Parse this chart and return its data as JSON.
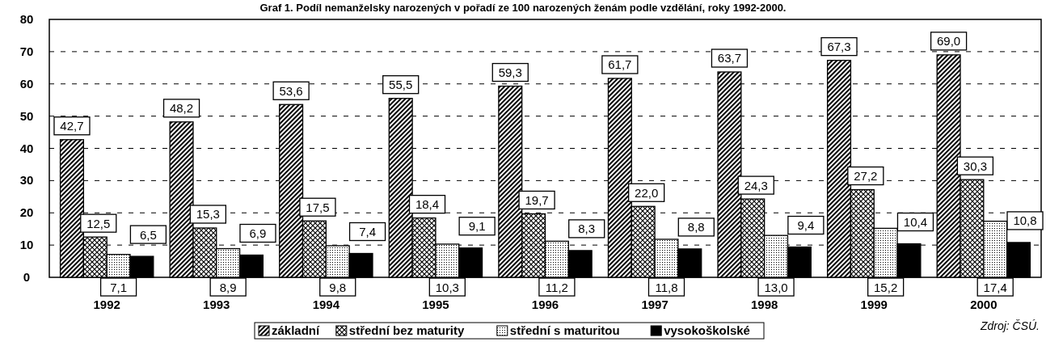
{
  "chart_data": {
    "type": "bar",
    "title": "Graf 1. Podíl nemanželsky narozených v pořadí ze 100 narozených ženám podle vzdělání, roky 1992-2000.",
    "categories": [
      "1992",
      "1993",
      "1994",
      "1995",
      "1996",
      "1997",
      "1998",
      "1999",
      "2000"
    ],
    "series": [
      {
        "name": "základní",
        "color": "#000000",
        "values": [
          42.7,
          48.2,
          53.6,
          55.5,
          59.3,
          61.7,
          63.7,
          67.3,
          69.0
        ],
        "value_labels": [
          "42,7",
          "48,2",
          "53,6",
          "55,5",
          "59,3",
          "61,7",
          "63,7",
          "67,3",
          "69,0"
        ]
      },
      {
        "name": "střední bez maturity",
        "color": "#000000",
        "values": [
          12.5,
          15.3,
          17.5,
          18.4,
          19.7,
          22.0,
          24.3,
          27.2,
          30.3
        ],
        "value_labels": [
          "12,5",
          "15,3",
          "17,5",
          "18,4",
          "19,7",
          "22,0",
          "24,3",
          "27,2",
          "30,3"
        ]
      },
      {
        "name": "střední s maturitou",
        "color": "#000000",
        "values": [
          7.1,
          8.9,
          9.8,
          10.3,
          11.2,
          11.8,
          13.0,
          15.2,
          17.4
        ],
        "value_labels": [
          "7,1",
          "8,9",
          "9,8",
          "10,3",
          "11,2",
          "11,8",
          "13,0",
          "15,2",
          "17,4"
        ]
      },
      {
        "name": "vysokoškolské",
        "color": "#000000",
        "values": [
          6.5,
          6.9,
          7.4,
          9.1,
          8.3,
          8.8,
          9.4,
          10.4,
          10.8
        ],
        "value_labels": [
          "6,5",
          "6,9",
          "7,4",
          "9,1",
          "8,3",
          "8,8",
          "9,4",
          "10,4",
          "10,8"
        ]
      }
    ],
    "ylim": [
      0,
      80
    ],
    "yticks": [
      0,
      10,
      20,
      30,
      40,
      50,
      60,
      70,
      80
    ],
    "grid": "y",
    "legend": "bottom",
    "annotations": [
      "Zdroj: ČSÚ."
    ]
  }
}
